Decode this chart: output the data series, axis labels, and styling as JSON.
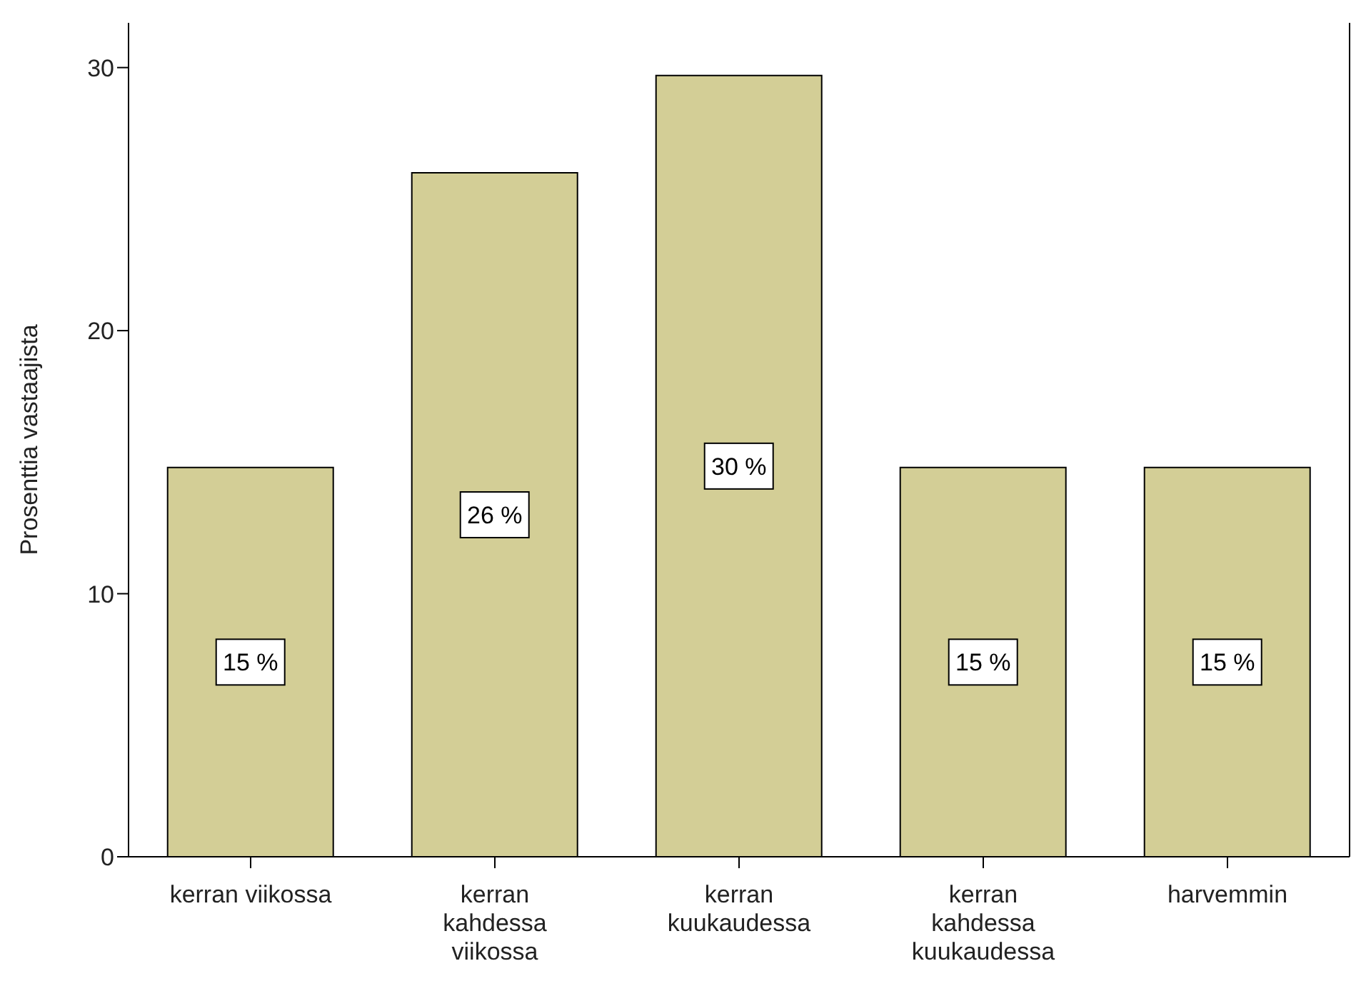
{
  "chart_data": {
    "type": "bar",
    "ylabel": "Prosenttia vastaajista",
    "categories": [
      "kerran viikossa",
      "kerran\nkahdessa\nviikossa",
      "kerran\nkuukaudessa",
      "kerran\nkahdessa\nkuukaudessa",
      "harvemmin"
    ],
    "values": [
      14.8,
      26.0,
      29.7,
      14.8,
      14.8
    ],
    "value_labels": [
      "15 %",
      "26 %",
      "30 %",
      "15 %",
      "15 %"
    ],
    "color": "#d3ce96",
    "ylim": [
      0,
      31.7
    ],
    "yticks": [
      0,
      10,
      20,
      30
    ]
  }
}
